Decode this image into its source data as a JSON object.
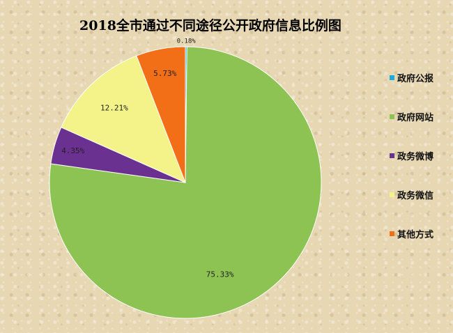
{
  "chart_data": {
    "type": "pie",
    "title": "2018全市通过不同途径公开政府信息比例图",
    "categories": [
      "政府公报",
      "政府网站",
      "政务微博",
      "政务微信",
      "其他方式"
    ],
    "values": [
      0.18,
      75.33,
      4.35,
      12.21,
      5.73
    ],
    "labels": [
      "0.18%",
      "75.33%",
      "4.35%",
      "12.21%",
      "5.73%"
    ],
    "colors": [
      "#1ea9e1",
      "#8dc352",
      "#6a3190",
      "#f4f38a",
      "#f26f18"
    ],
    "start_angle_deg": 0,
    "direction": "clockwise",
    "legend": "right"
  }
}
